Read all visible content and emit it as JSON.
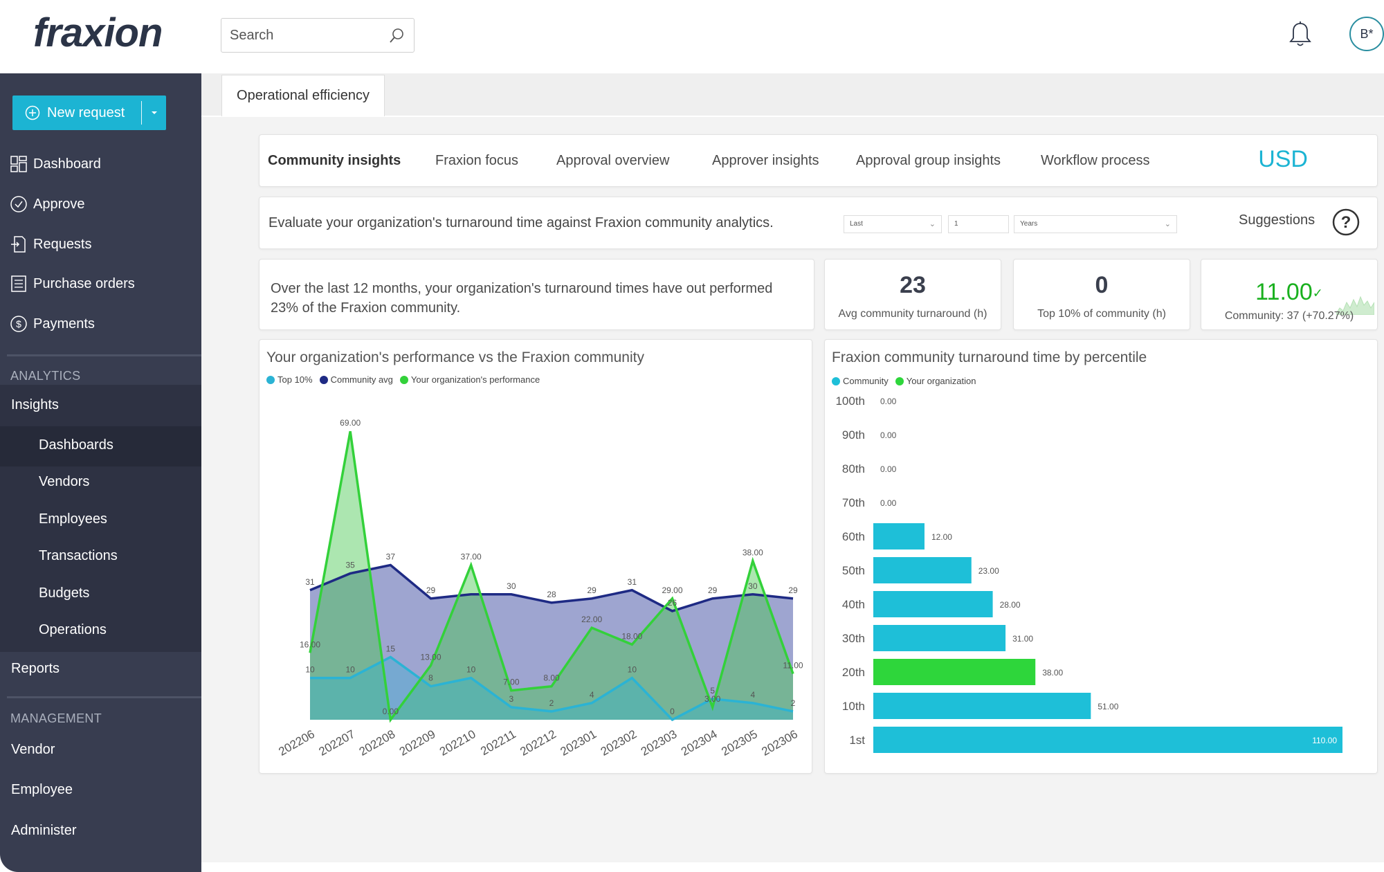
{
  "header": {
    "logo": "fraxion",
    "search_placeholder": "Search",
    "avatar_initials": "B*"
  },
  "sidebar": {
    "new_request": "New request",
    "nav": [
      "Dashboard",
      "Approve",
      "Requests",
      "Purchase orders",
      "Payments"
    ],
    "analytics_label": "ANALYTICS",
    "insights": "Insights",
    "insights_sub": [
      "Dashboards",
      "Vendors",
      "Employees",
      "Transactions",
      "Budgets",
      "Operations"
    ],
    "reports": "Reports",
    "management_label": "MANAGEMENT",
    "management": [
      "Vendor",
      "Employee",
      "Administer"
    ]
  },
  "main": {
    "page_tab": "Operational efficiency",
    "dash_tabs": [
      "Community insights",
      "Fraxion focus",
      "Approval overview",
      "Approver insights",
      "Approval group insights",
      "Workflow process"
    ],
    "currency": "USD",
    "filter": {
      "description": "Evaluate your organization's turnaround time against Fraxion community analytics.",
      "period_type": "Last",
      "period_value": "1",
      "period_unit": "Years",
      "suggestions": "Suggestions"
    },
    "summary": "Over the last 12 months, your organization's turnaround times have out performed 23% of  the Fraxion community.",
    "kpis": [
      {
        "value": "23",
        "label": "Avg community turnaround (h)"
      },
      {
        "value": "0",
        "label": "Top 10% of community (h)"
      },
      {
        "value": "11.00",
        "label": "Community: 37 (+70.27%)"
      }
    ]
  },
  "chart_data": [
    {
      "type": "area",
      "title": "Your organization's performance vs the Fraxion community",
      "legend": [
        "Top 10%",
        "Community avg",
        "Your organization's performance"
      ],
      "categories": [
        "202206",
        "202207",
        "202208",
        "202209",
        "202210",
        "202211",
        "202212",
        "202301",
        "202302",
        "202303",
        "202304",
        "202305",
        "202306"
      ],
      "series": [
        {
          "name": "Community avg",
          "color": "#1e2a84",
          "values": [
            31,
            35,
            37,
            29,
            30,
            30,
            28,
            29,
            31,
            26,
            29,
            30,
            29
          ],
          "labels": [
            "31",
            "35",
            "37",
            "29",
            "",
            "30",
            "28",
            "29",
            "31",
            "26",
            "29",
            "30",
            "29"
          ]
        },
        {
          "name": "Top 10%",
          "color": "#2bb3d4",
          "values": [
            10,
            10,
            15,
            8,
            10,
            3,
            2,
            4,
            10,
            0,
            5,
            4,
            2
          ],
          "labels": [
            "10",
            "10",
            "15",
            "8",
            "10",
            "3",
            "2",
            "4",
            "10",
            "0",
            "5",
            "4",
            "2"
          ]
        },
        {
          "name": "Your organization's performance",
          "color": "#33d13a",
          "values": [
            16,
            69,
            0,
            13,
            37,
            7,
            8,
            22,
            18,
            29,
            3,
            38,
            11
          ],
          "labels": [
            "16.00",
            "69.00",
            "0.00",
            "13.00",
            "37.00",
            "7.00",
            "8.00",
            "22.00",
            "18.00",
            "29.00",
            "3.00",
            "38.00",
            "11.00"
          ]
        }
      ],
      "extra_labels": [
        "37"
      ],
      "ylim": [
        0,
        75
      ]
    },
    {
      "type": "bar",
      "title": "Fraxion community turnaround time by percentile",
      "legend": [
        "Community",
        "Your organization"
      ],
      "categories": [
        "100th",
        "90th",
        "80th",
        "70th",
        "60th",
        "50th",
        "40th",
        "30th",
        "20th",
        "10th",
        "1st"
      ],
      "values": [
        0,
        0,
        0,
        0,
        12,
        23,
        28,
        31,
        38,
        51,
        110
      ],
      "value_labels": [
        "0.00",
        "0.00",
        "0.00",
        "0.00",
        "12.00",
        "23.00",
        "28.00",
        "31.00",
        "38.00",
        "51.00",
        "110.00"
      ],
      "highlight_index": 8,
      "colors": {
        "community": "#1ebfd8",
        "organization": "#2ed63b"
      }
    }
  ]
}
